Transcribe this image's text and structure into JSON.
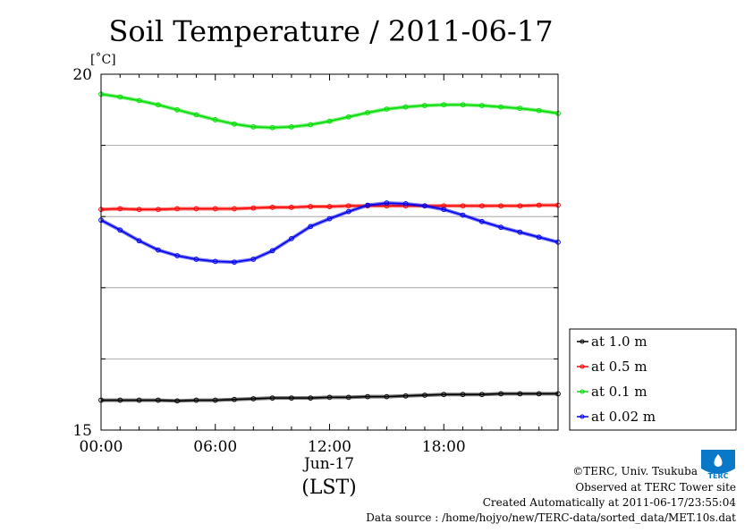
{
  "chart_data": {
    "type": "line",
    "title": "Soil Temperature / 2011-06-17",
    "ylabel": "[˚C]",
    "ylim": [
      15,
      20
    ],
    "y_ticks": [
      "20",
      "15"
    ],
    "xlim": [
      0,
      24
    ],
    "x_ticks": [
      "00:00",
      "06:00",
      "12:00",
      "18:00"
    ],
    "x_tick_values": [
      0,
      6,
      12,
      18
    ],
    "xlabel_date": "Jun-17",
    "xlabel_tz": "(LST)",
    "grid": true,
    "legend_position": "right",
    "x": [
      0,
      1,
      2,
      3,
      4,
      5,
      6,
      7,
      8,
      9,
      10,
      11,
      12,
      13,
      14,
      15,
      16,
      17,
      18,
      19,
      20,
      21,
      22,
      23,
      24
    ],
    "series": [
      {
        "name": "at 1.0 m",
        "color": "#000000",
        "values": [
          15.42,
          15.42,
          15.42,
          15.42,
          15.41,
          15.42,
          15.42,
          15.43,
          15.44,
          15.45,
          15.45,
          15.45,
          15.46,
          15.46,
          15.47,
          15.47,
          15.48,
          15.49,
          15.5,
          15.5,
          15.5,
          15.51,
          15.51,
          15.51,
          15.51
        ]
      },
      {
        "name": "at 0.5 m",
        "color": "#ff0000",
        "values": [
          18.1,
          18.11,
          18.1,
          18.1,
          18.11,
          18.11,
          18.11,
          18.11,
          18.12,
          18.13,
          18.13,
          18.14,
          18.14,
          18.15,
          18.15,
          18.15,
          18.15,
          18.15,
          18.15,
          18.15,
          18.15,
          18.15,
          18.15,
          18.16,
          18.16
        ]
      },
      {
        "name": "at 0.1 m",
        "color": "#00dd00",
        "values": [
          19.72,
          19.68,
          19.63,
          19.57,
          19.5,
          19.43,
          19.36,
          19.3,
          19.26,
          19.25,
          19.26,
          19.29,
          19.34,
          19.4,
          19.46,
          19.51,
          19.54,
          19.56,
          19.57,
          19.57,
          19.56,
          19.54,
          19.52,
          19.49,
          19.45
        ]
      },
      {
        "name": "at 0.02 m",
        "color": "#0000ee",
        "values": [
          17.95,
          17.81,
          17.66,
          17.53,
          17.45,
          17.4,
          17.37,
          17.36,
          17.4,
          17.52,
          17.69,
          17.86,
          17.97,
          18.07,
          18.16,
          18.19,
          18.18,
          18.15,
          18.1,
          18.02,
          17.93,
          17.85,
          17.78,
          17.71,
          17.64
        ]
      }
    ]
  },
  "footer": {
    "copyright": "©TERC, Univ. Tsukuba",
    "observed": "Observed at TERC Tower site",
    "created": "Created Automatically at 2011-06-17/23:55:04",
    "source": "Data source : /home/hojyo/new/TERC-data/sorted_data/MET.10s.dat"
  },
  "logo": {
    "text": "TERC",
    "color": "#0077cc"
  }
}
